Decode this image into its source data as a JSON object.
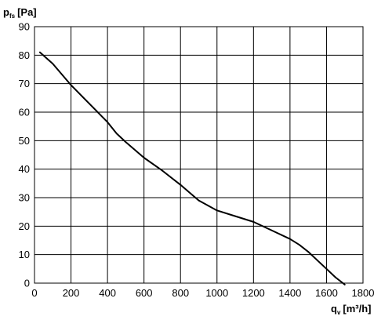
{
  "chart_data": {
    "type": "line",
    "title": "",
    "y_label": {
      "main": "p",
      "sub": "fs",
      "unit": "[Pa]"
    },
    "x_label": {
      "main": "q",
      "sub": "v",
      "unit": "[m³/h]"
    },
    "xlim": [
      0,
      1800
    ],
    "ylim": [
      0,
      90
    ],
    "x_ticks": [
      0,
      200,
      400,
      600,
      800,
      1000,
      1200,
      1400,
      1600,
      1800
    ],
    "y_ticks": [
      0,
      10,
      20,
      30,
      40,
      50,
      60,
      70,
      80,
      90
    ],
    "x_tick_labels": [
      "0",
      "200",
      "400",
      "600",
      "800",
      "1000",
      "1200",
      "1400",
      "1600",
      "1800"
    ],
    "y_tick_labels": [
      "0",
      "10",
      "20",
      "30",
      "40",
      "50",
      "60",
      "70",
      "80",
      "90"
    ],
    "grid": true,
    "series": [
      {
        "color": "#000000",
        "x": [
          30,
          100,
          200,
          300,
          400,
          450,
          500,
          600,
          700,
          800,
          900,
          1000,
          1100,
          1200,
          1300,
          1400,
          1450,
          1500,
          1550,
          1600,
          1650,
          1700
        ],
        "y": [
          81,
          77,
          69.5,
          63,
          56.5,
          52.5,
          49.5,
          44,
          39.5,
          34.5,
          29,
          25.5,
          23.5,
          21.5,
          18.5,
          15.5,
          13.5,
          11,
          8,
          5,
          2,
          -0.5
        ]
      }
    ]
  }
}
